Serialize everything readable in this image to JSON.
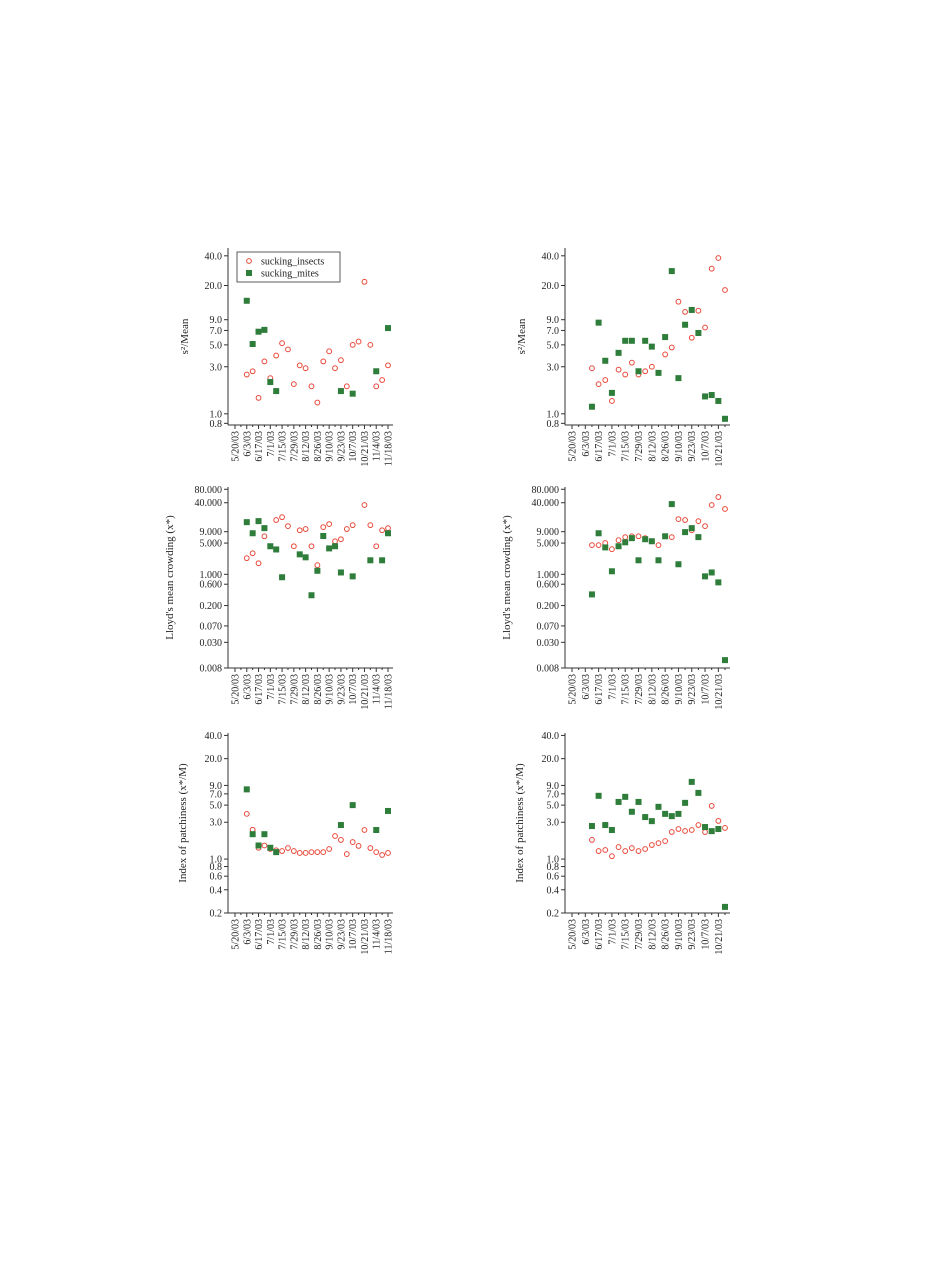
{
  "chart_data": [
    {
      "type": "scatter",
      "ylabel": "s²/Mean",
      "log": true,
      "legend": "upper left",
      "categories": [
        "5/20/03",
        null,
        "6/3/03",
        null,
        "6/17/03",
        null,
        "7/1/03",
        null,
        "7/15/03",
        null,
        "7/29/03",
        null,
        "8/12/03",
        null,
        "8/26/03",
        null,
        "9/10/03",
        null,
        "9/23/03",
        null,
        "10/7/03",
        null,
        "10/21/03",
        null,
        "11/4/03",
        null,
        "11/18/03"
      ],
      "ylim": [
        0.77,
        48
      ],
      "yticks": [
        0.8,
        {
          "value": 1,
          "label": "1.0"
        },
        {
          "value": 3,
          "label": "3.0"
        },
        {
          "value": 5,
          "label": "5.0"
        },
        {
          "value": 7,
          "label": "7.0"
        },
        {
          "value": 9,
          "label": "9.0"
        },
        {
          "value": 20,
          "label": "20.0"
        },
        {
          "value": 40,
          "label": "40.0"
        }
      ],
      "series": [
        {
          "name": "sucking_insects",
          "color": "#e8483a",
          "marker": "circle-open",
          "values": [
            null,
            null,
            2.5,
            2.7,
            1.45,
            3.4,
            2.3,
            3.9,
            5.2,
            4.5,
            2.0,
            3.1,
            2.9,
            1.9,
            1.3,
            3.4,
            4.3,
            2.9,
            3.5,
            1.9,
            5.0,
            5.4,
            21.8,
            5.0,
            1.9,
            2.2,
            3.1
          ]
        },
        {
          "name": "sucking_mites",
          "color": "#2e7d3a",
          "marker": "square",
          "values": [
            null,
            null,
            14,
            5.1,
            6.8,
            7.1,
            2.1,
            1.7,
            null,
            null,
            null,
            null,
            null,
            null,
            null,
            null,
            null,
            null,
            1.7,
            null,
            1.6,
            null,
            null,
            null,
            2.7,
            null,
            7.4
          ]
        }
      ]
    },
    {
      "type": "scatter",
      "ylabel": "s²/Mean",
      "log": true,
      "categories": [
        "5/20/03",
        null,
        "6/3/03",
        null,
        "6/17/03",
        null,
        "7/1/03",
        null,
        "7/15/03",
        null,
        "7/29/03",
        null,
        "8/12/03",
        null,
        "8/26/03",
        null,
        "9/10/03",
        null,
        "9/23/03",
        null,
        "10/7/03",
        null,
        "10/21/03",
        null
      ],
      "ylim": [
        0.77,
        48
      ],
      "yticks": [
        0.8,
        {
          "value": 1,
          "label": "1.0"
        },
        {
          "value": 3,
          "label": "3.0"
        },
        {
          "value": 5,
          "label": "5.0"
        },
        {
          "value": 7,
          "label": "7.0"
        },
        {
          "value": 9,
          "label": "9.0"
        },
        {
          "value": 20,
          "label": "20.0"
        },
        {
          "value": 40,
          "label": "40.0"
        }
      ],
      "series": [
        {
          "color": "#e8483a",
          "marker": "circle-open",
          "values": [
            null,
            null,
            null,
            2.9,
            2.0,
            2.2,
            1.35,
            2.8,
            2.5,
            3.3,
            2.5,
            2.7,
            3.0,
            null,
            4.0,
            4.7,
            13.7,
            10.8,
            5.9,
            11.1,
            7.5,
            29.6,
            38,
            18
          ]
        },
        {
          "color": "#2e7d3a",
          "marker": "square",
          "values": [
            null,
            null,
            null,
            1.18,
            8.4,
            3.45,
            1.63,
            4.15,
            5.5,
            5.5,
            2.7,
            5.5,
            4.8,
            2.6,
            6.0,
            28,
            2.3,
            8.0,
            11.3,
            6.6,
            1.5,
            1.55,
            1.35,
            0.89
          ]
        }
      ]
    },
    {
      "type": "scatter",
      "ylabel": "Lloyd's mean crowding (x*)",
      "log": true,
      "categories": [
        "5/20/03",
        null,
        "6/3/03",
        null,
        "6/17/03",
        null,
        "7/1/03",
        null,
        "7/15/03",
        null,
        "7/29/03",
        null,
        "8/12/03",
        null,
        "8/26/03",
        null,
        "9/10/03",
        null,
        "9/23/03",
        null,
        "10/7/03",
        null,
        "10/21/03",
        null,
        "11/4/03",
        null,
        "11/18/03"
      ],
      "ylim": [
        0.008,
        90
      ],
      "yticks": [
        0.008,
        {
          "value": 0.03,
          "label": "0.030"
        },
        {
          "value": 0.07,
          "label": "0.070"
        },
        {
          "value": 0.2,
          "label": "0.200"
        },
        {
          "value": 0.6,
          "label": "0.600"
        },
        {
          "value": 1,
          "label": "1.000"
        },
        {
          "value": 5,
          "label": "5.000"
        },
        {
          "value": 9,
          "label": "9.000"
        },
        {
          "value": 40,
          "label": "40.000"
        },
        {
          "value": 80,
          "label": "80.000"
        }
      ],
      "series": [
        {
          "color": "#e8483a",
          "marker": "circle-open",
          "values": [
            null,
            null,
            2.3,
            2.96,
            1.77,
            7.1,
            4.25,
            16.4,
            19,
            12,
            4.25,
            9.7,
            10.3,
            4.25,
            1.6,
            11.4,
            13.3,
            5.5,
            6.1,
            10.3,
            12.6,
            null,
            35.6,
            12.6,
            4.25,
            9.7,
            10.8
          ]
        },
        {
          "color": "#2e7d3a",
          "marker": "square",
          "values": [
            null,
            null,
            14.7,
            8.3,
            15.5,
            10.8,
            4.25,
            3.6,
            0.86,
            null,
            null,
            2.8,
            2.4,
            0.34,
            1.2,
            7.2,
            3.8,
            4.25,
            1.1,
            null,
            0.9,
            null,
            null,
            2.06,
            null,
            2.06,
            8.3
          ]
        }
      ]
    },
    {
      "type": "scatter",
      "ylabel": "Lloyd's mean crowding (x*)",
      "log": true,
      "categories": [
        "5/20/03",
        null,
        "6/3/03",
        null,
        "6/17/03",
        null,
        "7/1/03",
        null,
        "7/15/03",
        null,
        "7/29/03",
        null,
        "8/12/03",
        null,
        "8/26/03",
        null,
        "9/10/03",
        null,
        "9/23/03",
        null,
        "10/7/03",
        null,
        "10/21/03",
        null
      ],
      "ylim": [
        0.008,
        90
      ],
      "yticks": [
        0.008,
        {
          "value": 0.03,
          "label": "0.030"
        },
        {
          "value": 0.07,
          "label": "0.070"
        },
        {
          "value": 0.2,
          "label": "0.200"
        },
        {
          "value": 0.6,
          "label": "0.600"
        },
        {
          "value": 1,
          "label": "1.000"
        },
        {
          "value": 5,
          "label": "5.000"
        },
        {
          "value": 9,
          "label": "9.000"
        },
        {
          "value": 40,
          "label": "40.000"
        },
        {
          "value": 80,
          "label": "80.000"
        }
      ],
      "series": [
        {
          "color": "#e8483a",
          "marker": "circle-open",
          "values": [
            null,
            null,
            null,
            4.5,
            4.5,
            5.0,
            3.65,
            5.8,
            6.8,
            7.1,
            7.1,
            6.45,
            5.5,
            4.5,
            null,
            6.8,
            17.2,
            16.4,
            9.7,
            15.5,
            12,
            35.6,
            53.6,
            29
          ]
        },
        {
          "color": "#2e7d3a",
          "marker": "square",
          "values": [
            null,
            null,
            null,
            0.355,
            8.3,
            4.0,
            1.17,
            4.25,
            5.2,
            6.45,
            2.06,
            6.1,
            5.5,
            2.06,
            7.1,
            37.3,
            1.68,
            8.8,
            10.8,
            6.8,
            0.9,
            1.1,
            0.66,
            0.012
          ]
        }
      ]
    },
    {
      "type": "scatter",
      "ylabel": "Index of patchiness (x*/M)",
      "log": true,
      "categories": [
        "5/20/03",
        null,
        "6/3/03",
        null,
        "6/17/03",
        null,
        "7/1/03",
        null,
        "7/15/03",
        null,
        "7/29/03",
        null,
        "8/12/03",
        null,
        "8/26/03",
        null,
        "9/10/03",
        null,
        "9/23/03",
        null,
        "10/7/03",
        null,
        "10/21/03",
        null,
        "11/4/03",
        null,
        "11/18/03"
      ],
      "ylim": [
        0.2,
        43
      ],
      "yticks": [
        0.2,
        0.4,
        0.6,
        0.8,
        {
          "value": 1,
          "label": "1.0"
        },
        {
          "value": 3,
          "label": "3.0"
        },
        {
          "value": 5,
          "label": "5.0"
        },
        {
          "value": 7,
          "label": "7.0"
        },
        {
          "value": 9,
          "label": "9.0"
        },
        {
          "value": 20,
          "label": "20.0"
        },
        {
          "value": 40,
          "label": "40.0"
        }
      ],
      "series": [
        {
          "color": "#e8483a",
          "marker": "circle-open",
          "values": [
            null,
            null,
            3.85,
            2.4,
            1.4,
            1.5,
            1.35,
            1.3,
            1.27,
            1.39,
            1.27,
            1.2,
            1.2,
            1.23,
            1.23,
            1.23,
            1.35,
            1.99,
            1.77,
            1.16,
            1.66,
            1.48,
            2.38,
            1.39,
            1.23,
            1.13,
            1.2
          ]
        },
        {
          "color": "#2e7d3a",
          "marker": "square",
          "values": [
            null,
            null,
            8.0,
            2.1,
            1.5,
            2.1,
            1.4,
            1.23,
            null,
            null,
            null,
            null,
            null,
            null,
            null,
            null,
            null,
            null,
            2.76,
            null,
            5.0,
            null,
            null,
            null,
            2.38,
            null,
            4.2
          ]
        }
      ]
    },
    {
      "type": "scatter",
      "ylabel": "Index of patchiness (x*/M)",
      "log": true,
      "categories": [
        "5/20/03",
        null,
        "6/3/03",
        null,
        "6/17/03",
        null,
        "7/1/03",
        null,
        "7/15/03",
        null,
        "7/29/03",
        null,
        "8/12/03",
        null,
        "8/26/03",
        null,
        "9/10/03",
        null,
        "9/23/03",
        null,
        "10/7/03",
        null,
        "10/21/03",
        null
      ],
      "ylim": [
        0.2,
        43
      ],
      "yticks": [
        0.2,
        0.4,
        0.6,
        0.8,
        {
          "value": 1,
          "label": "1.0"
        },
        {
          "value": 3,
          "label": "3.0"
        },
        {
          "value": 5,
          "label": "5.0"
        },
        {
          "value": 7,
          "label": "7.0"
        },
        {
          "value": 9,
          "label": "9.0"
        },
        {
          "value": 20,
          "label": "20.0"
        },
        {
          "value": 40,
          "label": "40.0"
        }
      ],
      "series": [
        {
          "color": "#e8483a",
          "marker": "circle-open",
          "values": [
            null,
            null,
            null,
            1.77,
            1.27,
            1.31,
            1.09,
            1.43,
            1.27,
            1.39,
            1.27,
            1.35,
            1.52,
            1.61,
            1.71,
            2.24,
            2.45,
            2.31,
            2.38,
            2.76,
            2.24,
            4.88,
            3.12,
            2.53
          ]
        },
        {
          "color": "#2e7d3a",
          "marker": "square",
          "values": [
            null,
            null,
            null,
            2.68,
            6.6,
            2.76,
            2.38,
            5.5,
            6.4,
            4.1,
            5.5,
            3.5,
            3.1,
            4.75,
            3.85,
            3.6,
            3.85,
            5.35,
            10,
            7.2,
            2.6,
            2.3,
            2.45,
            0.24
          ]
        }
      ]
    }
  ]
}
